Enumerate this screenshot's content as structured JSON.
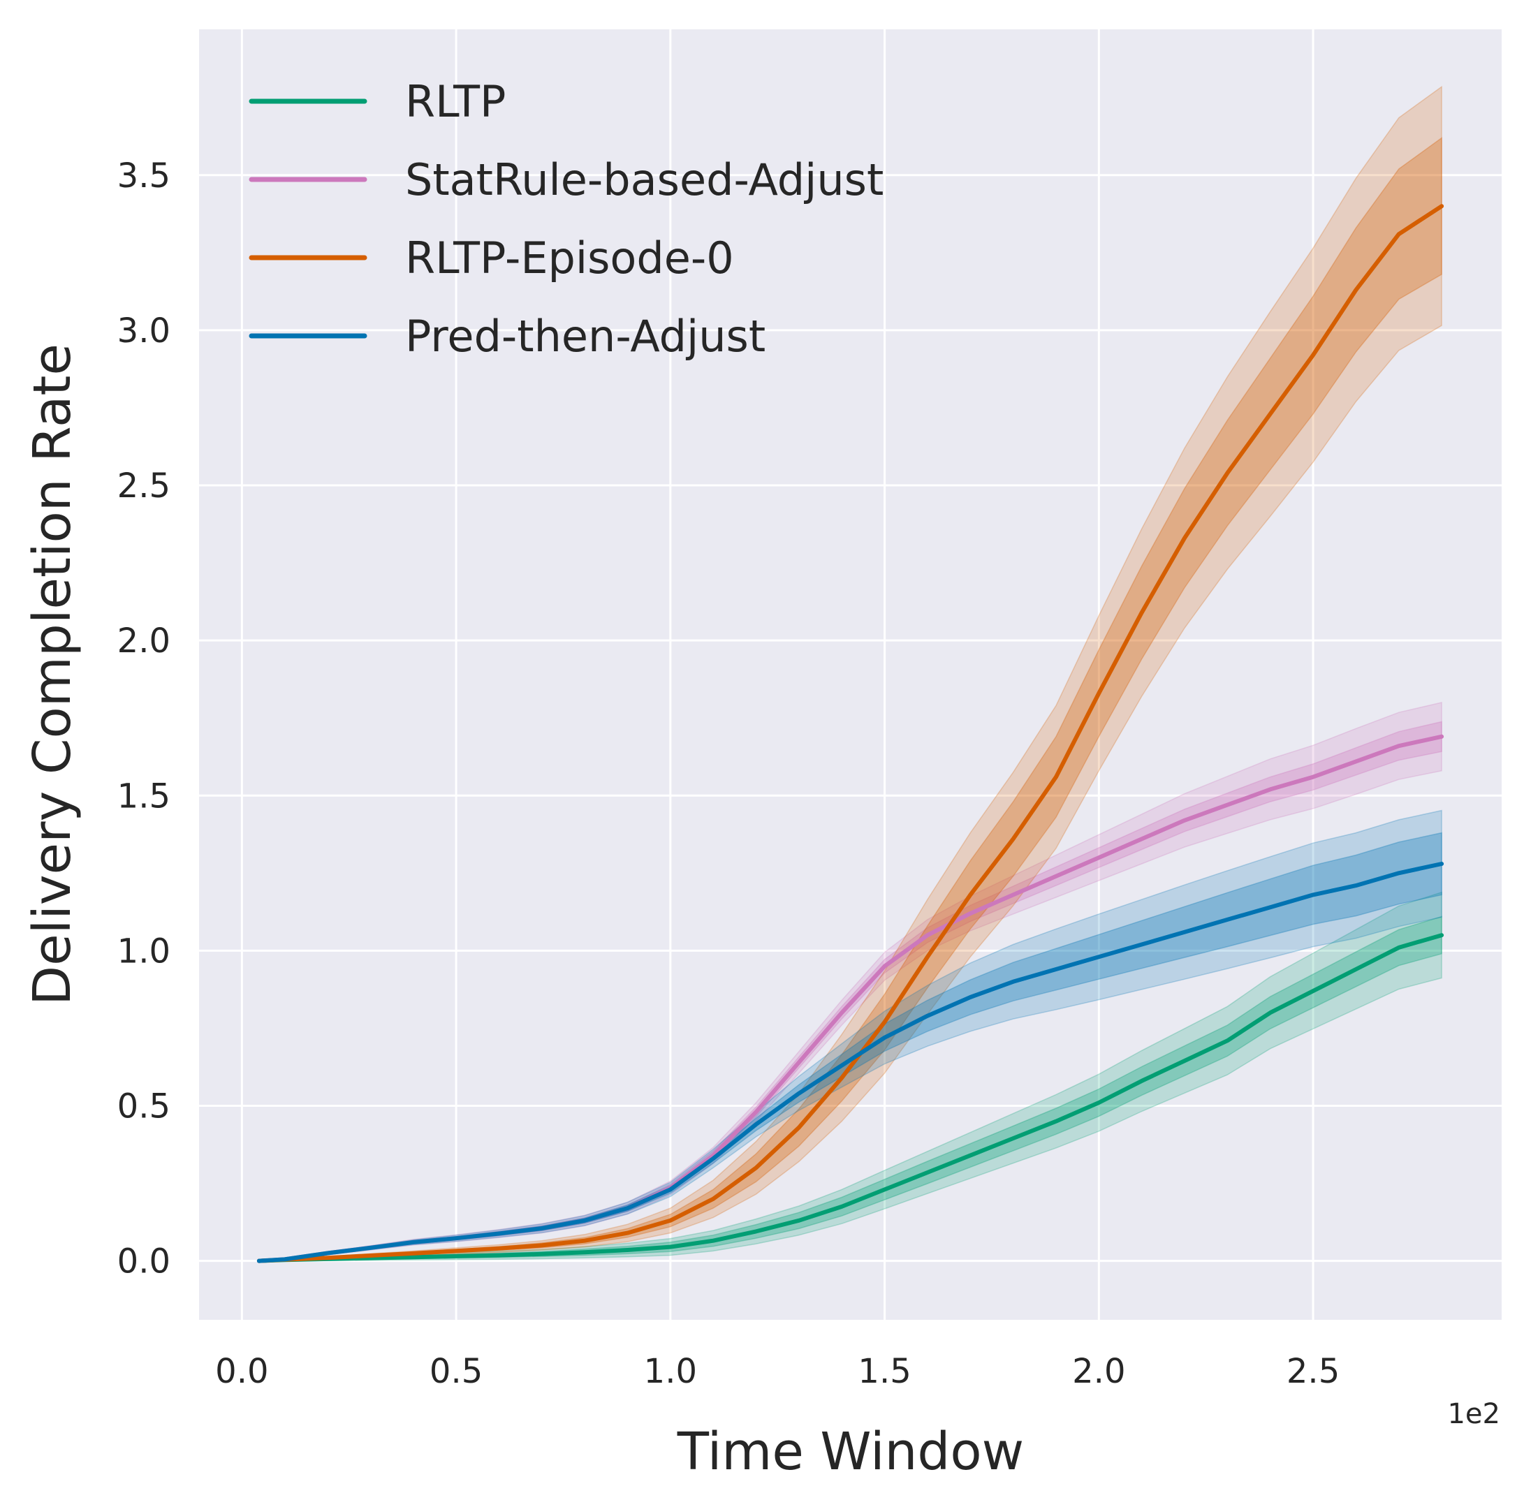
{
  "chart_data": {
    "type": "line",
    "xlabel": "Time Window",
    "ylabel": "Delivery Completion Rate",
    "x_offset_label": "1e2",
    "xlim": [
      -0.1,
      2.94
    ],
    "ylim": [
      -0.19,
      3.97
    ],
    "x_ticks": [
      0.0,
      0.5,
      1.0,
      1.5,
      2.0,
      2.5
    ],
    "x_tick_labels": [
      "0.0",
      "0.5",
      "1.0",
      "1.5",
      "2.0",
      "2.5"
    ],
    "y_ticks": [
      0.0,
      0.5,
      1.0,
      1.5,
      2.0,
      2.5,
      3.0,
      3.5
    ],
    "y_tick_labels": [
      "0.0",
      "0.5",
      "1.0",
      "1.5",
      "2.0",
      "2.5",
      "3.0",
      "3.5"
    ],
    "grid": true,
    "legend_position": "top-left",
    "x": [
      0.04,
      0.1,
      0.2,
      0.3,
      0.4,
      0.5,
      0.6,
      0.7,
      0.8,
      0.9,
      1.0,
      1.1,
      1.2,
      1.3,
      1.4,
      1.5,
      1.6,
      1.7,
      1.8,
      1.9,
      2.0,
      2.1,
      2.2,
      2.3,
      2.4,
      2.5,
      2.6,
      2.7,
      2.8
    ],
    "series": [
      {
        "name": "RLTP",
        "color": "#029e73",
        "values": [
          0.0,
          0.003,
          0.006,
          0.009,
          0.012,
          0.015,
          0.018,
          0.022,
          0.028,
          0.035,
          0.045,
          0.065,
          0.095,
          0.13,
          0.175,
          0.23,
          0.285,
          0.34,
          0.395,
          0.45,
          0.51,
          0.58,
          0.645,
          0.71,
          0.8,
          0.87,
          0.94,
          1.01,
          1.05
        ],
        "band_inner": [
          0.0,
          0.001,
          0.003,
          0.004,
          0.005,
          0.006,
          0.007,
          0.008,
          0.01,
          0.012,
          0.015,
          0.018,
          0.022,
          0.026,
          0.03,
          0.033,
          0.036,
          0.038,
          0.04,
          0.042,
          0.044,
          0.046,
          0.048,
          0.05,
          0.052,
          0.054,
          0.056,
          0.058,
          0.06
        ],
        "band_outer": [
          0.0,
          0.002,
          0.005,
          0.007,
          0.009,
          0.011,
          0.013,
          0.015,
          0.018,
          0.022,
          0.027,
          0.033,
          0.04,
          0.047,
          0.055,
          0.062,
          0.068,
          0.074,
          0.08,
          0.086,
          0.092,
          0.098,
          0.104,
          0.11,
          0.116,
          0.122,
          0.128,
          0.134,
          0.138
        ]
      },
      {
        "name": "StatRule-based-Adjust",
        "color": "#cc78bc",
        "values": [
          0.0,
          0.005,
          0.025,
          0.042,
          0.06,
          0.073,
          0.088,
          0.105,
          0.13,
          0.17,
          0.235,
          0.34,
          0.48,
          0.64,
          0.8,
          0.95,
          1.05,
          1.12,
          1.18,
          1.24,
          1.3,
          1.36,
          1.42,
          1.47,
          1.52,
          1.56,
          1.61,
          1.66,
          1.69
        ]
      },
      {
        "name": "RLTP-Episode-0",
        "color": "#d55e00",
        "values": [
          0.0,
          0.004,
          0.01,
          0.017,
          0.024,
          0.032,
          0.04,
          0.05,
          0.065,
          0.09,
          0.13,
          0.2,
          0.3,
          0.43,
          0.59,
          0.77,
          0.98,
          1.18,
          1.36,
          1.56,
          1.83,
          2.09,
          2.33,
          2.54,
          2.73,
          2.92,
          3.13,
          3.31,
          3.4
        ],
        "band_inner": [
          0.0,
          0.001,
          0.002,
          0.003,
          0.004,
          0.005,
          0.006,
          0.008,
          0.01,
          0.014,
          0.02,
          0.03,
          0.045,
          0.06,
          0.075,
          0.09,
          0.1,
          0.11,
          0.12,
          0.13,
          0.14,
          0.15,
          0.16,
          0.17,
          0.18,
          0.19,
          0.2,
          0.21,
          0.22
        ],
        "band_outer": [
          0.0,
          0.002,
          0.004,
          0.006,
          0.008,
          0.01,
          0.012,
          0.015,
          0.02,
          0.028,
          0.04,
          0.06,
          0.085,
          0.11,
          0.14,
          0.165,
          0.185,
          0.2,
          0.215,
          0.23,
          0.25,
          0.27,
          0.29,
          0.31,
          0.33,
          0.345,
          0.36,
          0.375,
          0.385
        ]
      },
      {
        "name": "Pred-then-Adjust",
        "color": "#0173b2",
        "values": [
          0.0,
          0.005,
          0.025,
          0.042,
          0.06,
          0.073,
          0.088,
          0.105,
          0.13,
          0.17,
          0.23,
          0.33,
          0.44,
          0.54,
          0.63,
          0.72,
          0.79,
          0.85,
          0.9,
          0.94,
          0.98,
          1.02,
          1.06,
          1.1,
          1.14,
          1.18,
          1.21,
          1.25,
          1.28
        ],
        "band_inner": [
          0.0,
          0.001,
          0.002,
          0.003,
          0.004,
          0.005,
          0.006,
          0.007,
          0.008,
          0.01,
          0.012,
          0.015,
          0.02,
          0.028,
          0.036,
          0.044,
          0.05,
          0.056,
          0.062,
          0.067,
          0.072,
          0.077,
          0.082,
          0.087,
          0.091,
          0.095,
          0.098,
          0.1,
          0.1
        ],
        "band_outer": [
          0.0,
          0.002,
          0.004,
          0.006,
          0.008,
          0.01,
          0.012,
          0.014,
          0.016,
          0.019,
          0.023,
          0.03,
          0.04,
          0.055,
          0.07,
          0.085,
          0.098,
          0.11,
          0.12,
          0.13,
          0.138,
          0.145,
          0.152,
          0.158,
          0.163,
          0.167,
          0.17,
          0.172,
          0.172
        ]
      }
    ],
    "band_colors_note": "confidence bands shown as nested translucent fills",
    "statrule_band_inner": [
      0.0,
      0.001,
      0.003,
      0.004,
      0.005,
      0.006,
      0.007,
      0.008,
      0.009,
      0.01,
      0.012,
      0.014,
      0.016,
      0.018,
      0.02,
      0.022,
      0.024,
      0.026,
      0.028,
      0.03,
      0.032,
      0.034,
      0.036,
      0.038,
      0.04,
      0.042,
      0.044,
      0.046,
      0.048
    ],
    "statrule_band_outer": [
      0.0,
      0.002,
      0.005,
      0.007,
      0.009,
      0.011,
      0.013,
      0.015,
      0.017,
      0.019,
      0.022,
      0.026,
      0.03,
      0.035,
      0.04,
      0.045,
      0.05,
      0.056,
      0.062,
      0.068,
      0.074,
      0.08,
      0.086,
      0.092,
      0.098,
      0.102,
      0.106,
      0.108,
      0.11
    ],
    "background_color": "#eaeaf2",
    "grid_color": "#ffffff"
  }
}
